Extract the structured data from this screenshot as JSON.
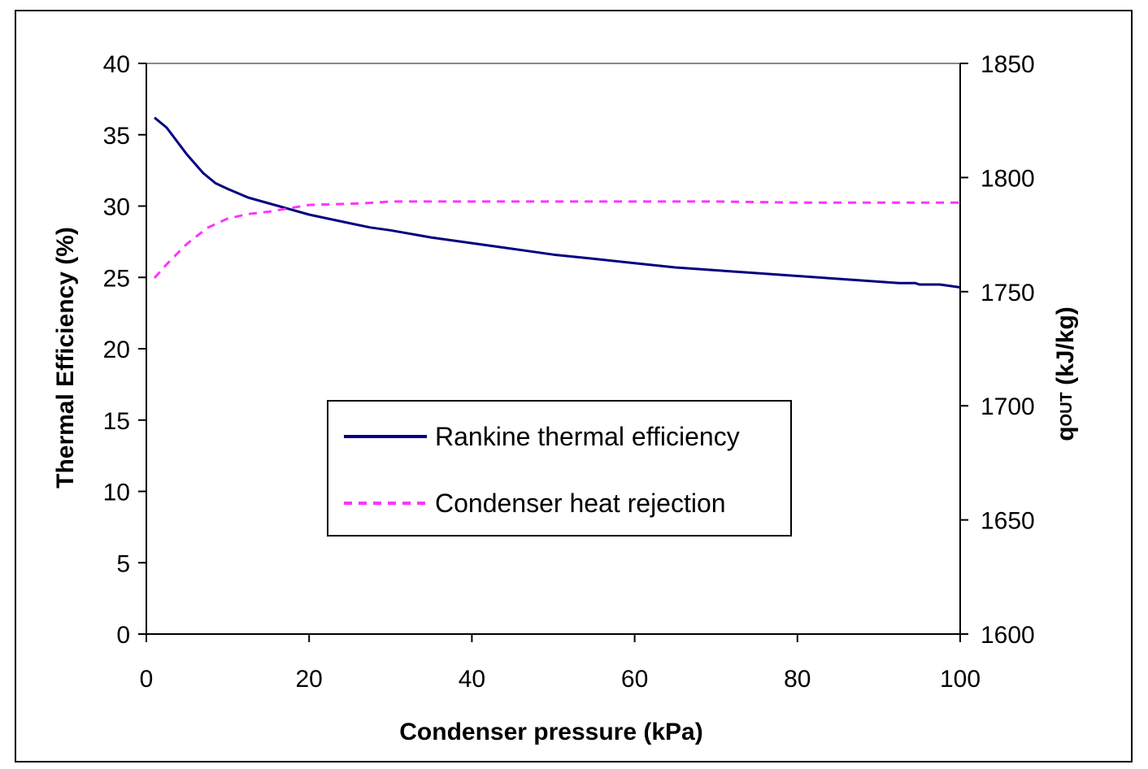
{
  "chart_data": {
    "type": "line",
    "title": "",
    "xlabel": "Condenser pressure (kPa)",
    "ylabel": "Thermal Efficiency (%)",
    "y2label_main": "q",
    "y2label_sub": "OUT",
    "y2label_unit": " (kJ/kg)",
    "xlim": [
      0,
      100
    ],
    "ylim": [
      0,
      40
    ],
    "y2lim": [
      1600,
      1850
    ],
    "xticks": [
      0,
      20,
      40,
      60,
      80,
      100
    ],
    "yticks": [
      0,
      5,
      10,
      15,
      20,
      25,
      30,
      35,
      40
    ],
    "y2ticks": [
      1600,
      1650,
      1700,
      1750,
      1800,
      1850
    ],
    "grid": false,
    "legend_position": "center",
    "series": [
      {
        "name": "Rankine thermal efficiency",
        "axis": "left",
        "color": "#000080",
        "style": "solid",
        "x": [
          1,
          2.5,
          5,
          7,
          8.5,
          10,
          12.5,
          15,
          20,
          25,
          27.5,
          30,
          35,
          40,
          45,
          50,
          55,
          60,
          65,
          70,
          75,
          80,
          85,
          87.5,
          90,
          92.5,
          94.5,
          95,
          97.5,
          100
        ],
        "values": [
          36.2,
          35.5,
          33.6,
          32.3,
          31.6,
          31.2,
          30.6,
          30.2,
          29.4,
          28.8,
          28.5,
          28.3,
          27.8,
          27.4,
          27.0,
          26.6,
          26.3,
          26.0,
          25.7,
          25.5,
          25.3,
          25.1,
          24.9,
          24.8,
          24.7,
          24.6,
          24.6,
          24.5,
          24.5,
          24.3
        ]
      },
      {
        "name": "Condenser heat rejection",
        "axis": "right",
        "color": "#ff33ff",
        "style": "dashed",
        "x": [
          1,
          2.5,
          5,
          7.5,
          10,
          12.5,
          15,
          20,
          25,
          28,
          30,
          40,
          50,
          60,
          70,
          80,
          90,
          100
        ],
        "values": [
          1756,
          1762,
          1771,
          1778,
          1782,
          1784,
          1785,
          1788,
          1788.5,
          1789,
          1789.5,
          1789.5,
          1789.5,
          1789.5,
          1789.5,
          1789,
          1789,
          1789
        ]
      }
    ]
  }
}
